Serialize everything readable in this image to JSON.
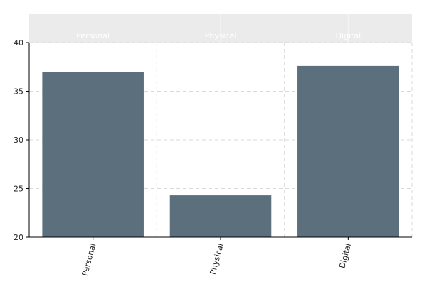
{
  "chart_data": {
    "type": "bar",
    "categories": [
      "Personal",
      "Physical",
      "Digital"
    ],
    "values": [
      37.0,
      24.3,
      37.6
    ],
    "title": "",
    "xlabel": "",
    "ylabel": "",
    "ylim": [
      20,
      40
    ],
    "yticks": [
      20,
      25,
      30,
      35,
      40
    ],
    "facet_labels": [
      "Personal",
      "Physical",
      "Digital"
    ],
    "grid": true,
    "legend": "none",
    "colors": {
      "bar": "#5c6f7d",
      "facet_strip": "#ebebeb",
      "facet_text": "#ffffff",
      "grid": "#d9d9d9",
      "axis": "#000000"
    }
  }
}
